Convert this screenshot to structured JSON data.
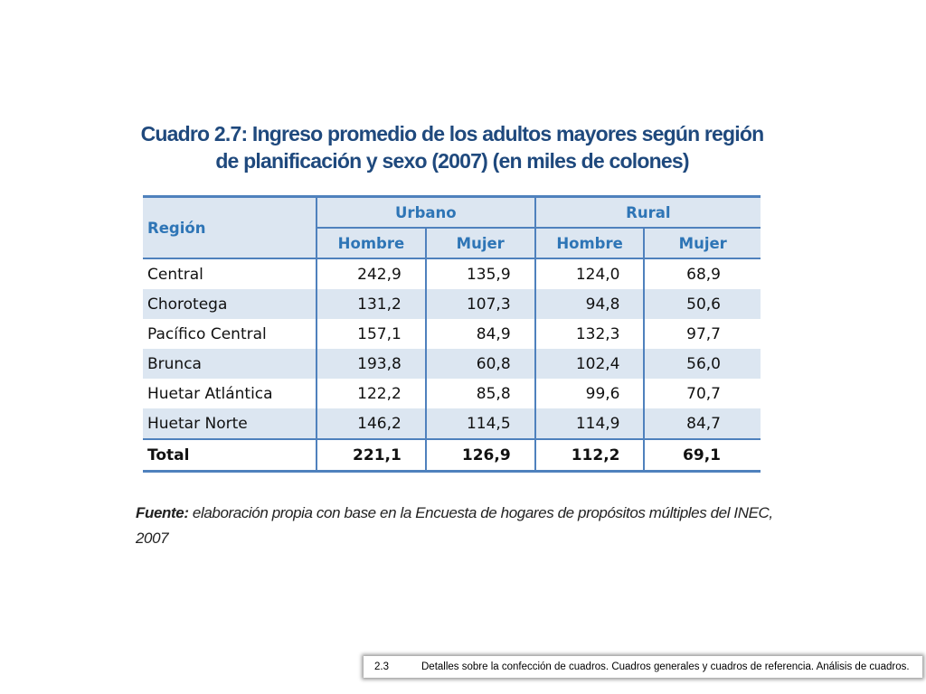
{
  "title": {
    "line1": "Cuadro 2.7: Ingreso promedio de los adultos mayores según región",
    "line2": "de planificación y sexo (2007) (en miles de colones)"
  },
  "table": {
    "region_header": "Región",
    "groups": [
      "Urbano",
      "Rural"
    ],
    "subheaders": [
      "Hombre",
      "Mujer",
      "Hombre",
      "Mujer"
    ],
    "rows": [
      {
        "region": "Central",
        "values": [
          "242,9",
          "135,9",
          "124,0",
          "68,9"
        ]
      },
      {
        "region": "Chorotega",
        "values": [
          "131,2",
          "107,3",
          "94,8",
          "50,6"
        ]
      },
      {
        "region": "Pacífico Central",
        "values": [
          "157,1",
          "84,9",
          "132,3",
          "97,7"
        ]
      },
      {
        "region": "Brunca",
        "values": [
          "193,8",
          "60,8",
          "102,4",
          "56,0"
        ]
      },
      {
        "region": "Huetar Atlántica",
        "values": [
          "122,2",
          "85,8",
          "99,6",
          "70,7"
        ]
      },
      {
        "region": "Huetar Norte",
        "values": [
          "146,2",
          "114,5",
          "114,9",
          "84,7"
        ]
      }
    ],
    "total": {
      "region": "Total",
      "values": [
        "221,1",
        "126,9",
        "112,2",
        "69,1"
      ]
    }
  },
  "source": {
    "label": "Fuente:",
    "text": "elaboración propia con base en la Encuesta de hogares de propósitos múltiples del INEC, 2007"
  },
  "footer": {
    "section": "2.3",
    "text": "Detalles sobre la confección de cuadros. Cuadros generales y cuadros de referencia. Análisis de cuadros."
  },
  "colors": {
    "title": "#1f497d",
    "header_text": "#2e75b6",
    "rule": "#4f81bd",
    "band": "#dce6f1"
  }
}
